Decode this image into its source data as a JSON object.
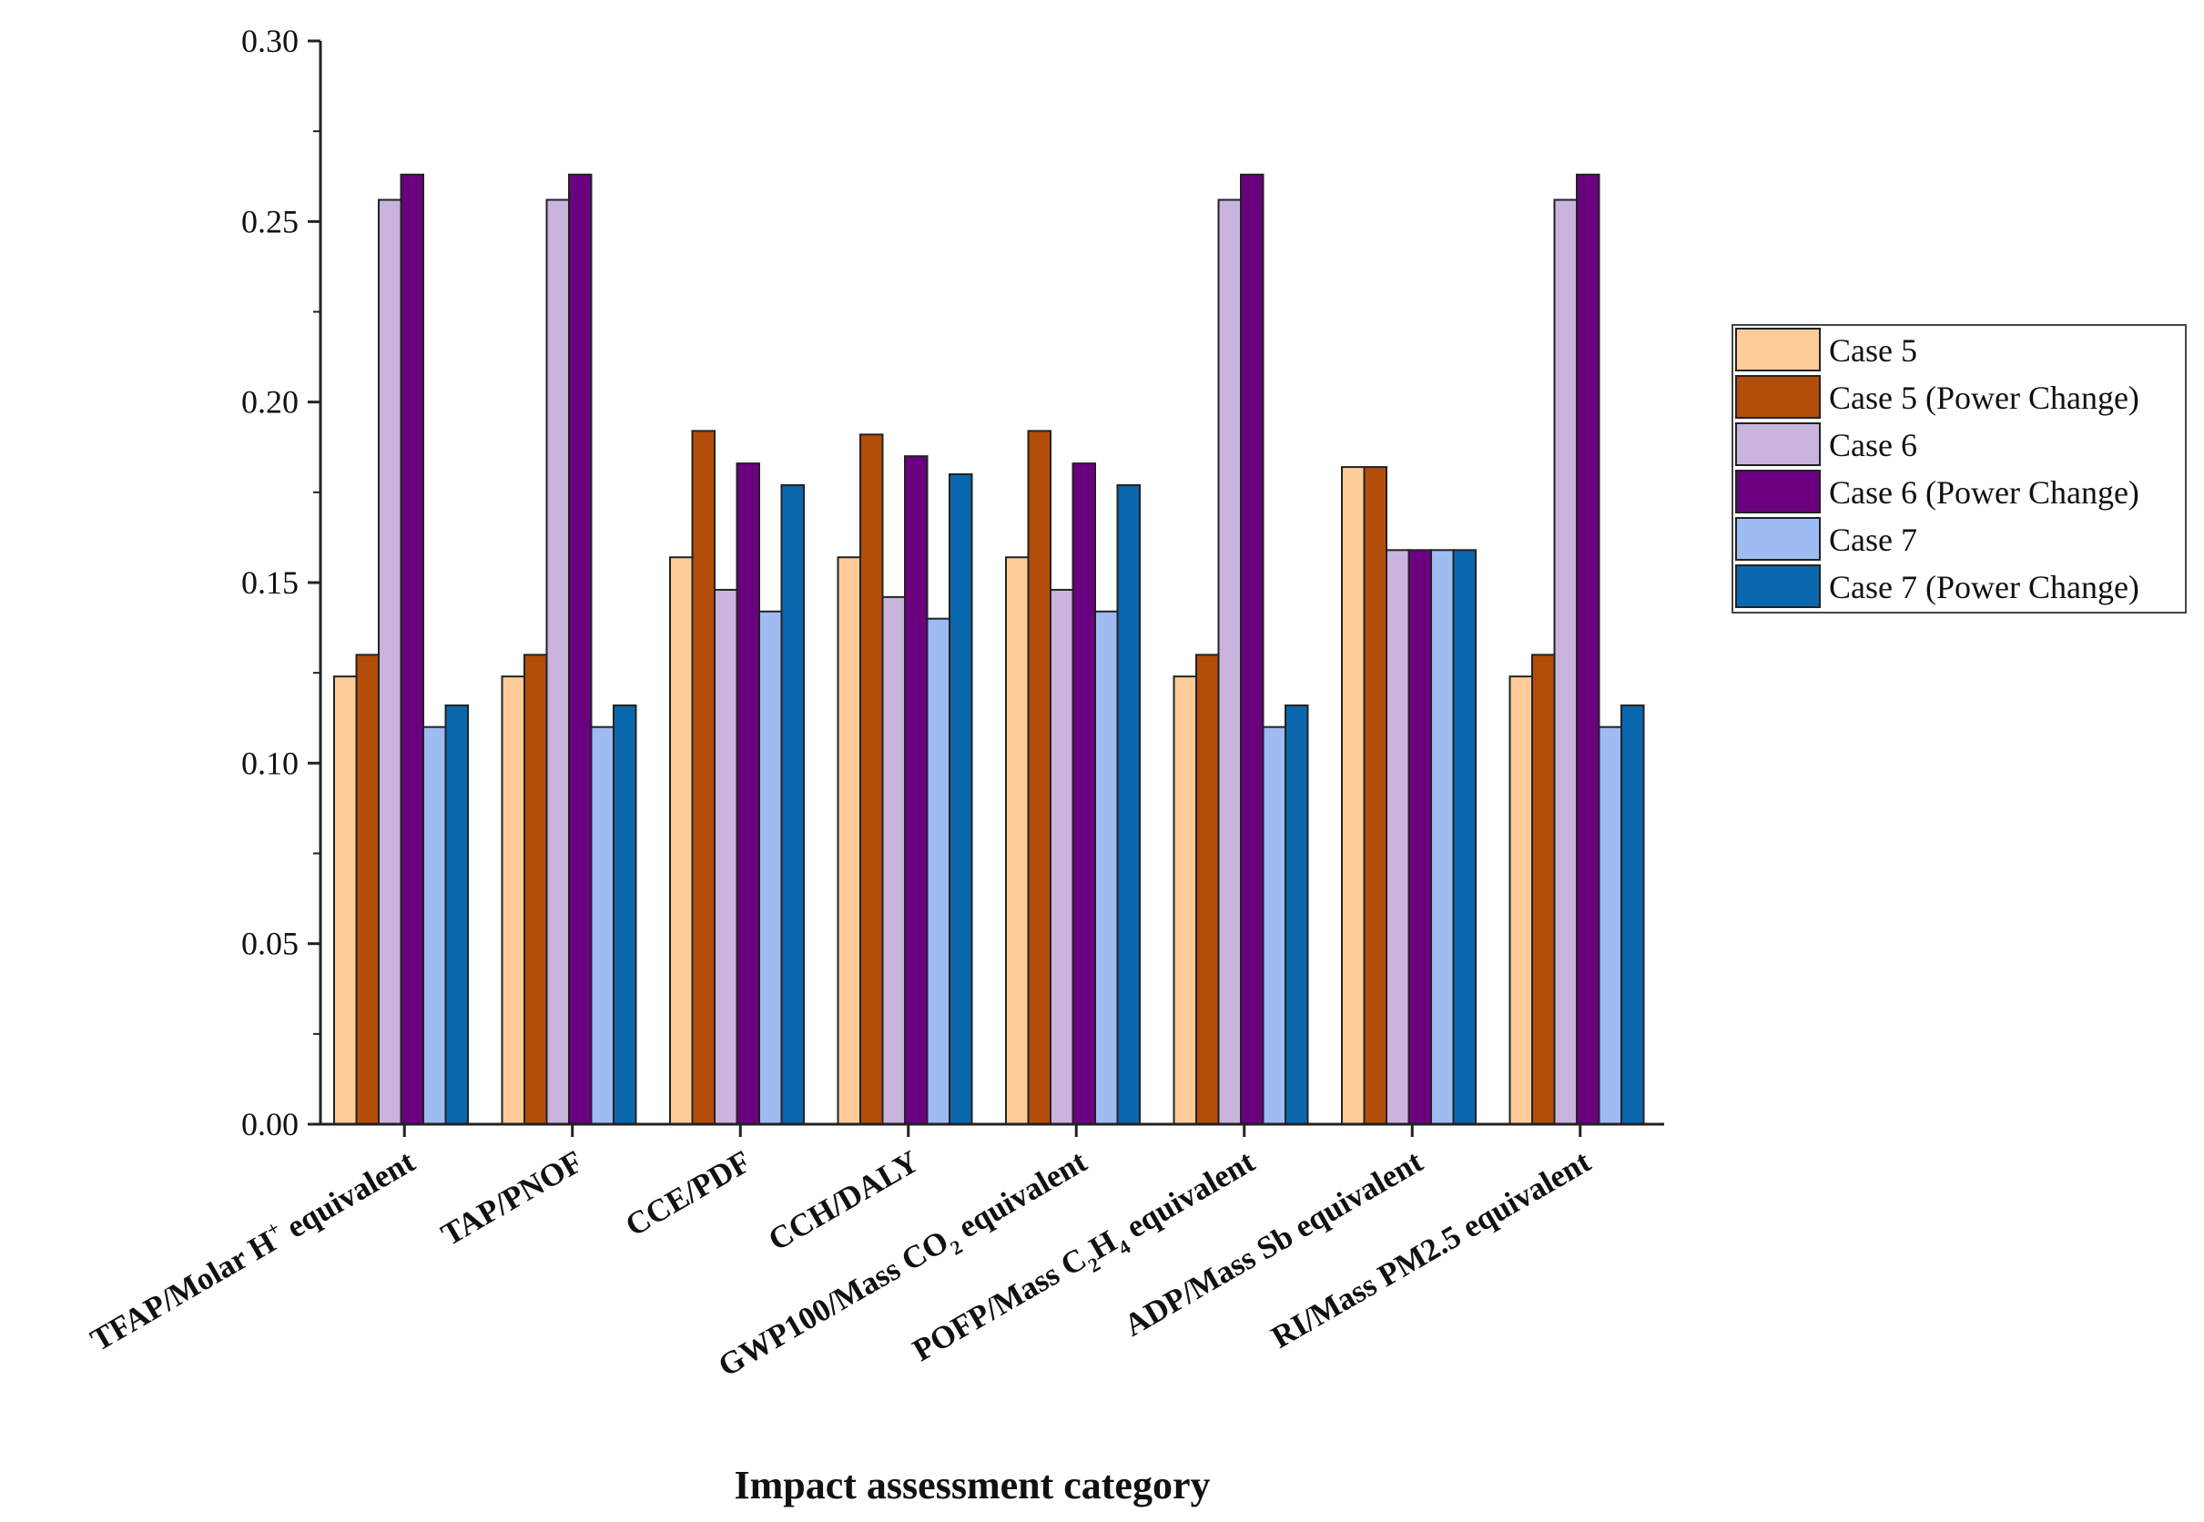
{
  "chart_data": {
    "type": "bar",
    "title": "",
    "xlabel": "Impact assessment category",
    "ylabel": "",
    "ylim": [
      0,
      0.3
    ],
    "yticks": [
      "0.00",
      "0.05",
      "0.10",
      "0.15",
      "0.20",
      "0.25",
      "0.30"
    ],
    "grid": false,
    "legend_position": "right",
    "categories": [
      {
        "label": "TFAP/Molar H",
        "sup": "+",
        "suffix": " equivalent"
      },
      {
        "label": "TAP/PNOF"
      },
      {
        "label": "CCE/PDF"
      },
      {
        "label": "CCH/DALY"
      },
      {
        "label": "GWP100/Mass CO",
        "sub": "2",
        "suffix": " equivalent"
      },
      {
        "label": "POFP/Mass C",
        "sub": "2",
        "mid": "H",
        "sub2": "4",
        "suffix": " equivalent"
      },
      {
        "label": "ADP/Mass Sb equivalent"
      },
      {
        "label": "RI/Mass PM2.5 equivalent"
      }
    ],
    "series": [
      {
        "name": "Case 5",
        "color": "#FFCC99",
        "values": [
          0.124,
          0.124,
          0.157,
          0.157,
          0.157,
          0.124,
          0.182,
          0.124
        ]
      },
      {
        "name": "Case 5 (Power Change)",
        "color": "#B34D0A",
        "values": [
          0.13,
          0.13,
          0.192,
          0.191,
          0.192,
          0.13,
          0.182,
          0.13
        ]
      },
      {
        "name": "Case 6",
        "color": "#C8B4DC",
        "values": [
          0.256,
          0.256,
          0.148,
          0.146,
          0.148,
          0.256,
          0.159,
          0.256
        ]
      },
      {
        "name": "Case 6 (Power Change)",
        "color": "#6A0080",
        "values": [
          0.263,
          0.263,
          0.183,
          0.185,
          0.183,
          0.263,
          0.159,
          0.263
        ]
      },
      {
        "name": "Case 7",
        "color": "#9EBBF2",
        "values": [
          0.11,
          0.11,
          0.142,
          0.14,
          0.142,
          0.11,
          0.159,
          0.11
        ]
      },
      {
        "name": "Case 7 (Power Change)",
        "color": "#0A67AE",
        "values": [
          0.116,
          0.116,
          0.177,
          0.18,
          0.177,
          0.116,
          0.159,
          0.116
        ]
      }
    ]
  }
}
